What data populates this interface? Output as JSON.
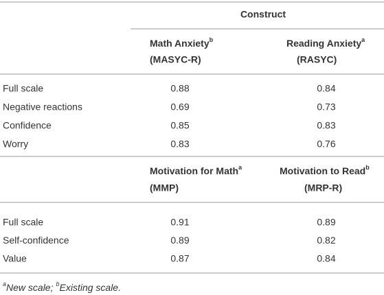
{
  "table": {
    "construct": "Construct",
    "sections": [
      {
        "headers": [
          {
            "label": "Math Anxiety",
            "sup": "b",
            "sub_label": "(MASYC-R)"
          },
          {
            "label": "Reading Anxiety",
            "sup": "a",
            "sub_label": "(RASYC)"
          }
        ],
        "rows": [
          [
            "Full scale",
            "0.88",
            "0.84"
          ],
          [
            "Negative reactions",
            "0.69",
            "0.73"
          ],
          [
            "Confidence",
            "0.85",
            "0.83"
          ],
          [
            "Worry",
            "0.83",
            "0.76"
          ]
        ]
      },
      {
        "headers": [
          {
            "label": "Motivation for Math",
            "sup": "a",
            "sub_label": "(MMP)"
          },
          {
            "label": "Motivation to Read",
            "sup": "b",
            "sub_label": "(MRP-R)"
          }
        ],
        "rows": [
          [
            "Full scale",
            "0.91",
            "0.89"
          ],
          [
            "Self-confidence",
            "0.89",
            "0.82"
          ],
          [
            "Value",
            "0.87",
            "0.84"
          ]
        ]
      }
    ]
  },
  "footnote": [
    {
      "sup": "a",
      "text": "New scale;"
    },
    {
      "sup": "b",
      "text": "Existing scale."
    }
  ]
}
